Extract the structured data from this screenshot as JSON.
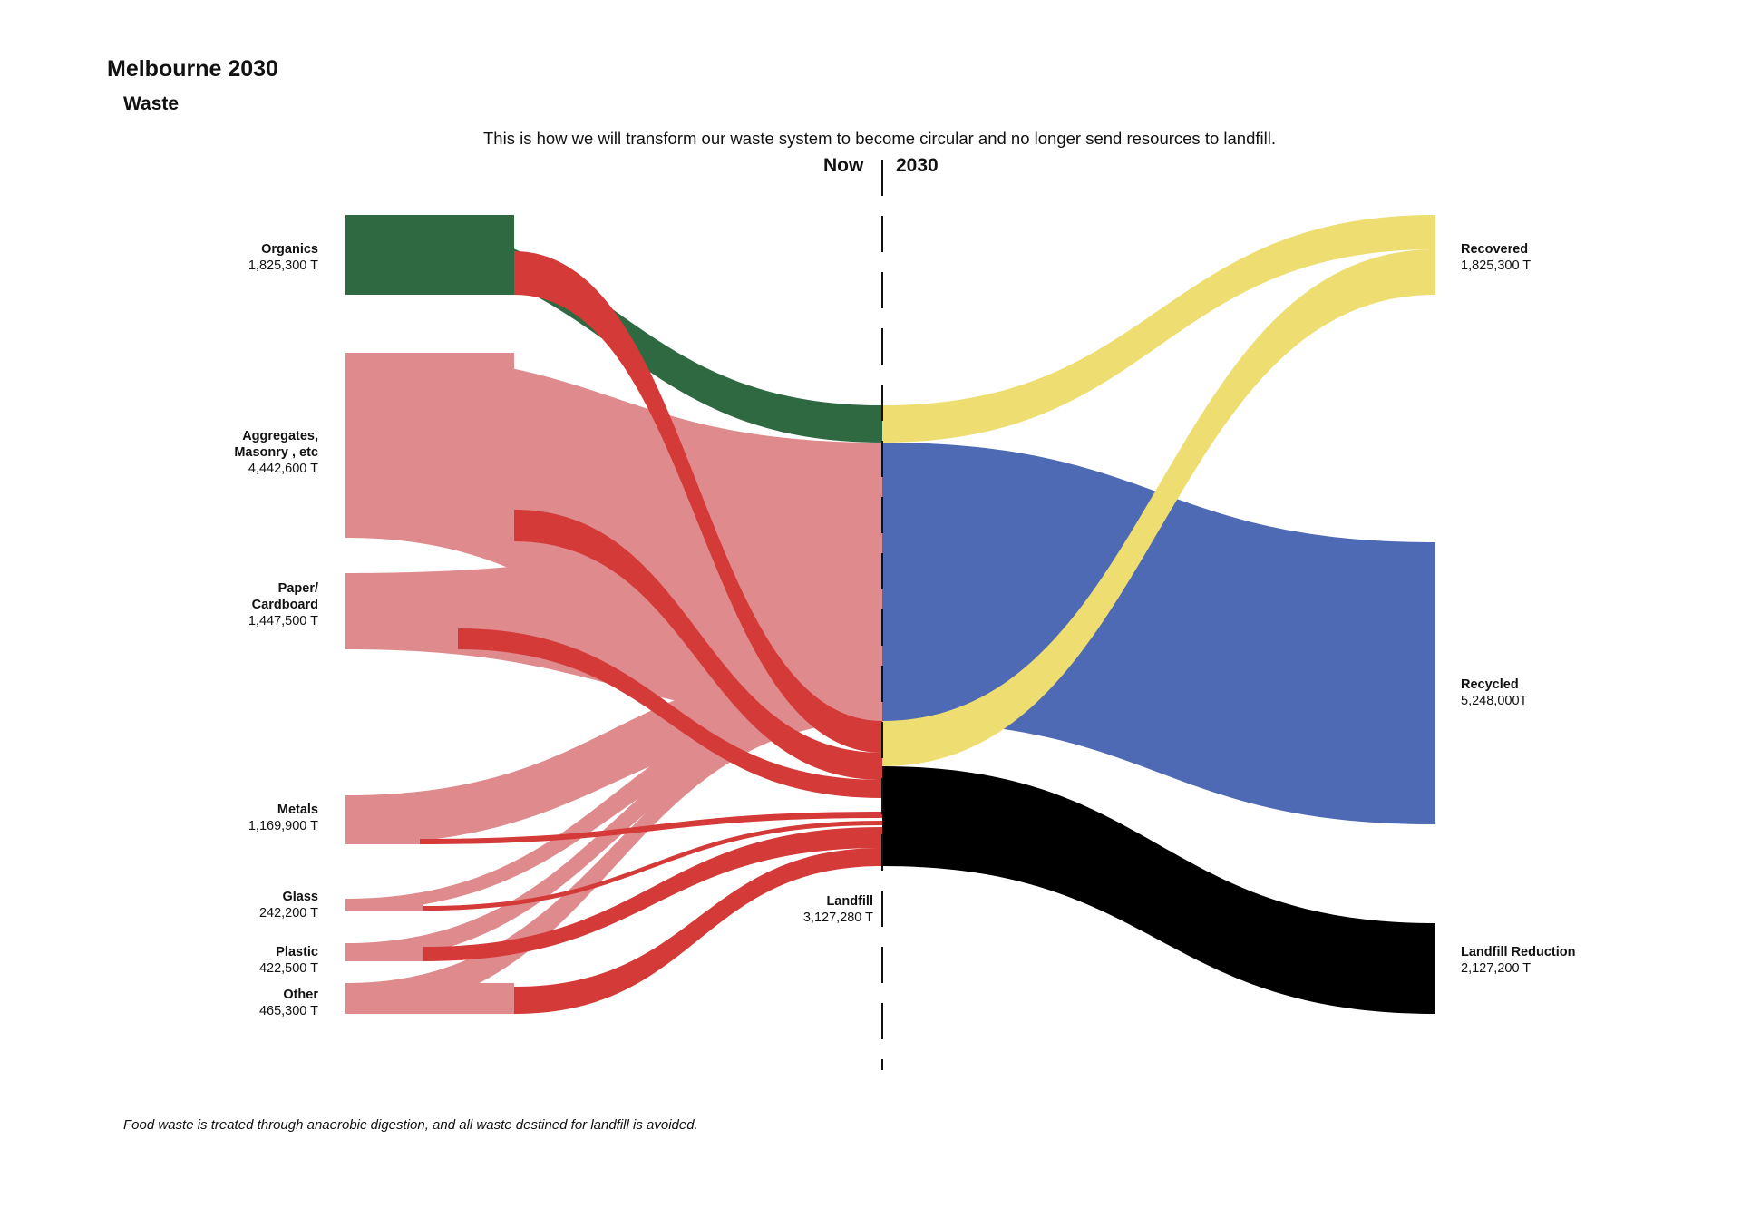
{
  "header": {
    "title": "Melbourne 2030",
    "subtitle": "Waste",
    "intro": "This is how we will transform our waste system to become circular and no longer send resources to landfill.",
    "now_label": "Now",
    "future_label": "2030"
  },
  "colors": {
    "organics": "#2f6942",
    "material": "#df8a8c",
    "landfill_flow": "#d43a38",
    "recovered": "#eedd70",
    "recycled": "#4f6ab5",
    "reduction": "#000000"
  },
  "sources": [
    {
      "name": "Organics",
      "value": "1,825,300 T"
    },
    {
      "name": "Aggregates,\nMasonry , etc",
      "value": "4,442,600 T"
    },
    {
      "name": "Paper/\nCardboard",
      "value": "1,447,500 T"
    },
    {
      "name": "Metals",
      "value": "1,169,900 T"
    },
    {
      "name": "Glass",
      "value": "242,200 T"
    },
    {
      "name": "Plastic",
      "value": "422,500 T"
    },
    {
      "name": "Other",
      "value": "465,300 T"
    }
  ],
  "middle": {
    "name": "Landfill",
    "value": "3,127,280 T"
  },
  "targets": [
    {
      "name": "Recovered",
      "value": "1,825,300 T"
    },
    {
      "name": "Recycled",
      "value": "5,248,000T"
    },
    {
      "name": "Landfill Reduction",
      "value": "2,127,200 T"
    }
  ],
  "footnote": "Food waste is treated through anaerobic digestion, and all waste destined for landfill is avoided."
}
